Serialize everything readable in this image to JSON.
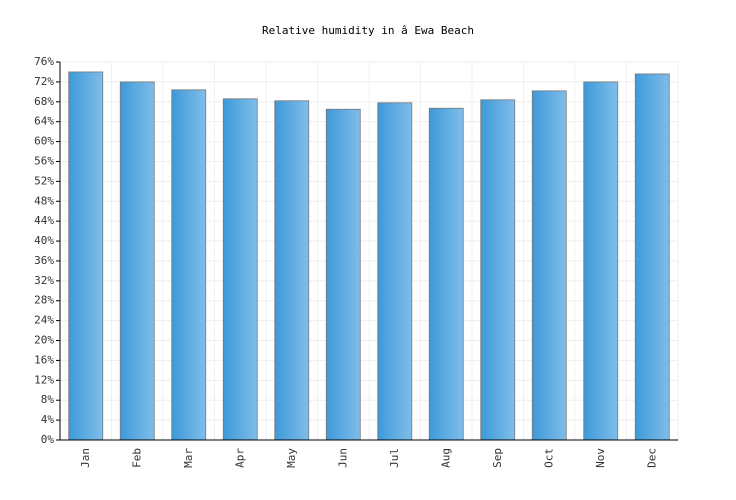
{
  "chart_data": {
    "type": "bar",
    "title": "Relative humidity in â  Ewa Beach",
    "categories": [
      "Jan",
      "Feb",
      "Mar",
      "Apr",
      "May",
      "Jun",
      "Jul",
      "Aug",
      "Sep",
      "Oct",
      "Nov",
      "Dec"
    ],
    "values": [
      74.0,
      72.0,
      70.4,
      68.6,
      68.2,
      66.5,
      67.8,
      66.7,
      68.4,
      70.2,
      72.0,
      73.6
    ],
    "color": "#3d9ad8",
    "ylim": [
      0,
      76
    ],
    "yticks": [
      {
        "value": 0,
        "label": "0%"
      },
      {
        "value": 4,
        "label": "4%"
      },
      {
        "value": 8,
        "label": "8%"
      },
      {
        "value": 12,
        "label": "12%"
      },
      {
        "value": 16,
        "label": "16%"
      },
      {
        "value": 20,
        "label": "20%"
      },
      {
        "value": 24,
        "label": "24%"
      },
      {
        "value": 28,
        "label": "28%"
      },
      {
        "value": 32,
        "label": "32%"
      },
      {
        "value": 36,
        "label": "36%"
      },
      {
        "value": 40,
        "label": "40%"
      },
      {
        "value": 44,
        "label": "44%"
      },
      {
        "value": 48,
        "label": "48%"
      },
      {
        "value": 52,
        "label": "52%"
      },
      {
        "value": 56,
        "label": "56%"
      },
      {
        "value": 60,
        "label": "60%"
      },
      {
        "value": 64,
        "label": "64%"
      },
      {
        "value": 68,
        "label": "68%"
      },
      {
        "value": 72,
        "label": "72%"
      },
      {
        "value": 76,
        "label": "76%"
      }
    ],
    "grid": true
  }
}
